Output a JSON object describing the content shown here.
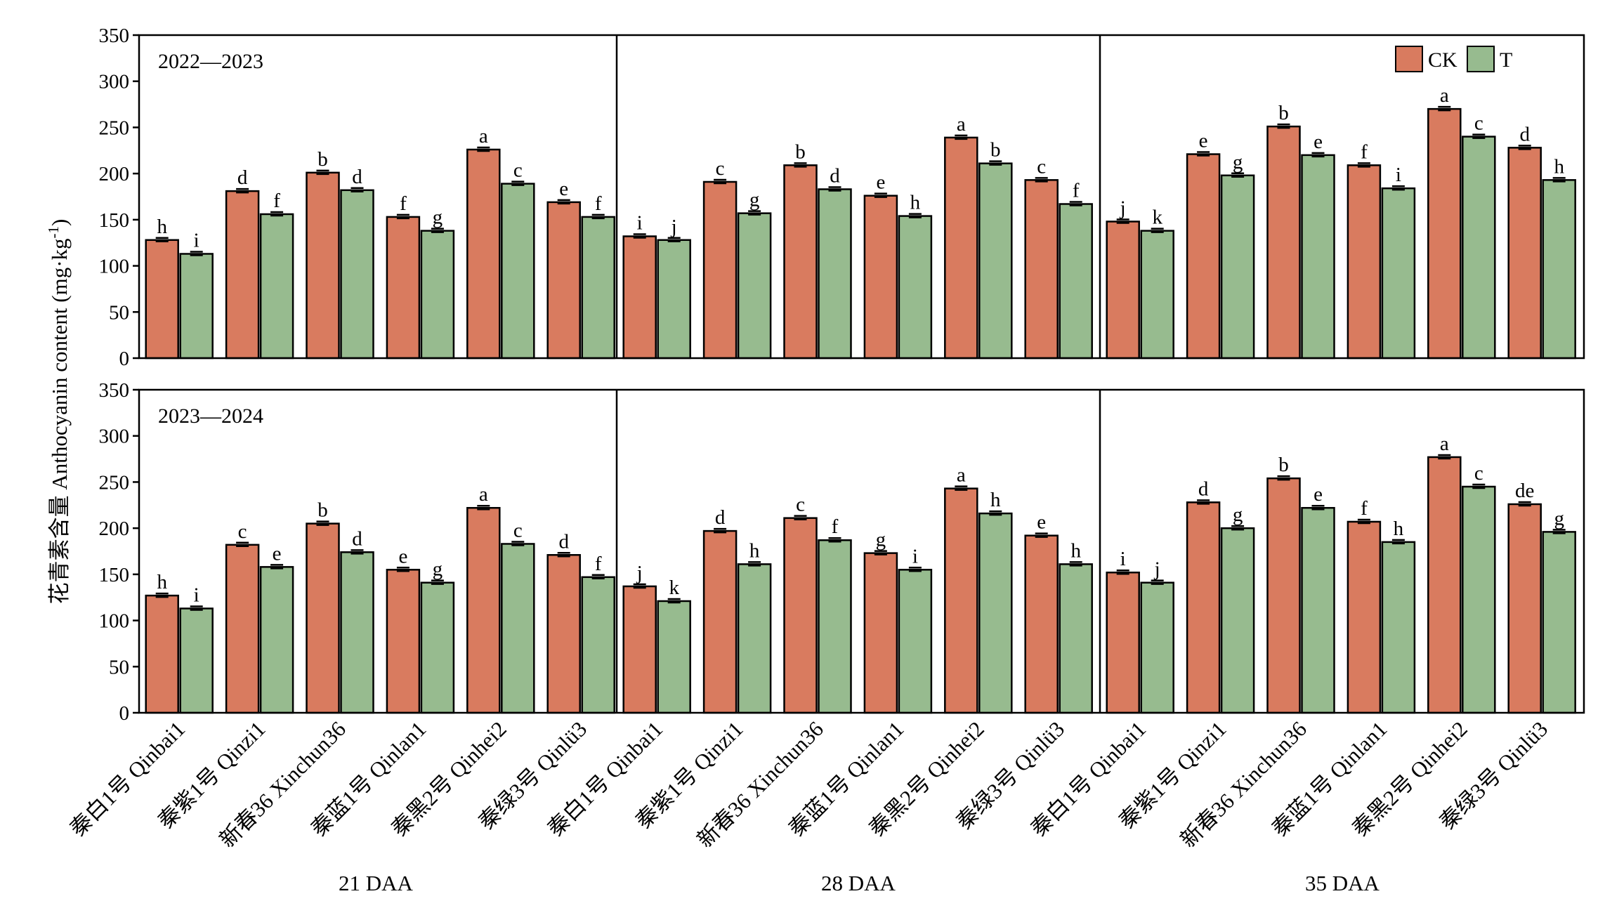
{
  "chart_data": {
    "type": "bar",
    "ylabel": "花青素含量 Anthocyanin content (mg·kg",
    "ylabel_sup": "-1",
    "ylabel_close": ")",
    "ylim": [
      0,
      350
    ],
    "yticks": [
      0,
      50,
      100,
      150,
      200,
      250,
      300,
      350
    ],
    "legend": {
      "position": "top-right",
      "entries": [
        "CK",
        "T"
      ]
    },
    "colors": {
      "CK": "#d97b5f",
      "T": "#97bb8f"
    },
    "groups": [
      "21 DAA",
      "28 DAA",
      "35 DAA"
    ],
    "categories": [
      "秦白1号 Qinbai1",
      "秦紫1号 Qinzi1",
      "新春36 Xinchun36",
      "秦蓝1号 Qinlan1",
      "秦黑2号 Qinhei2",
      "秦绿3号 Qinlü3"
    ],
    "panels": [
      {
        "title": "2022—2023",
        "series": [
          {
            "name": "CK",
            "values": [
              [
                128,
                181,
                201,
                153,
                226,
                169
              ],
              [
                132,
                191,
                209,
                176,
                239,
                193
              ],
              [
                148,
                221,
                251,
                209,
                270,
                228
              ]
            ]
          },
          {
            "name": "T",
            "values": [
              [
                113,
                156,
                182,
                138,
                189,
                153
              ],
              [
                128,
                157,
                183,
                154,
                211,
                167
              ],
              [
                138,
                198,
                220,
                184,
                240,
                193
              ]
            ]
          }
        ],
        "letters": {
          "CK": [
            [
              "h",
              "d",
              "b",
              "f",
              "a",
              "e"
            ],
            [
              "i",
              "c",
              "b",
              "e",
              "a",
              "c"
            ],
            [
              "j",
              "e",
              "b",
              "f",
              "a",
              "d"
            ]
          ],
          "T": [
            [
              "i",
              "f",
              "d",
              "g",
              "c",
              "f"
            ],
            [
              "j",
              "g",
              "d",
              "h",
              "b",
              "f"
            ],
            [
              "k",
              "g",
              "e",
              "i",
              "c",
              "h"
            ]
          ]
        }
      },
      {
        "title": "2023—2024",
        "series": [
          {
            "name": "CK",
            "values": [
              [
                127,
                182,
                205,
                155,
                222,
                171
              ],
              [
                137,
                197,
                211,
                173,
                243,
                192
              ],
              [
                152,
                228,
                254,
                207,
                277,
                226
              ]
            ]
          },
          {
            "name": "T",
            "values": [
              [
                113,
                158,
                174,
                141,
                183,
                147
              ],
              [
                121,
                161,
                187,
                155,
                216,
                161
              ],
              [
                141,
                200,
                222,
                185,
                245,
                196
              ]
            ]
          }
        ],
        "letters": {
          "CK": [
            [
              "h",
              "c",
              "b",
              "e",
              "a",
              "d"
            ],
            [
              "j",
              "d",
              "c",
              "g",
              "a",
              "e"
            ],
            [
              "i",
              "d",
              "b",
              "f",
              "a",
              "de"
            ]
          ],
          "T": [
            [
              "i",
              "e",
              "d",
              "g",
              "c",
              "f"
            ],
            [
              "k",
              "h",
              "f",
              "i",
              "h",
              "h"
            ],
            [
              "j",
              "g",
              "e",
              "h",
              "c",
              "g"
            ]
          ]
        }
      }
    ]
  }
}
